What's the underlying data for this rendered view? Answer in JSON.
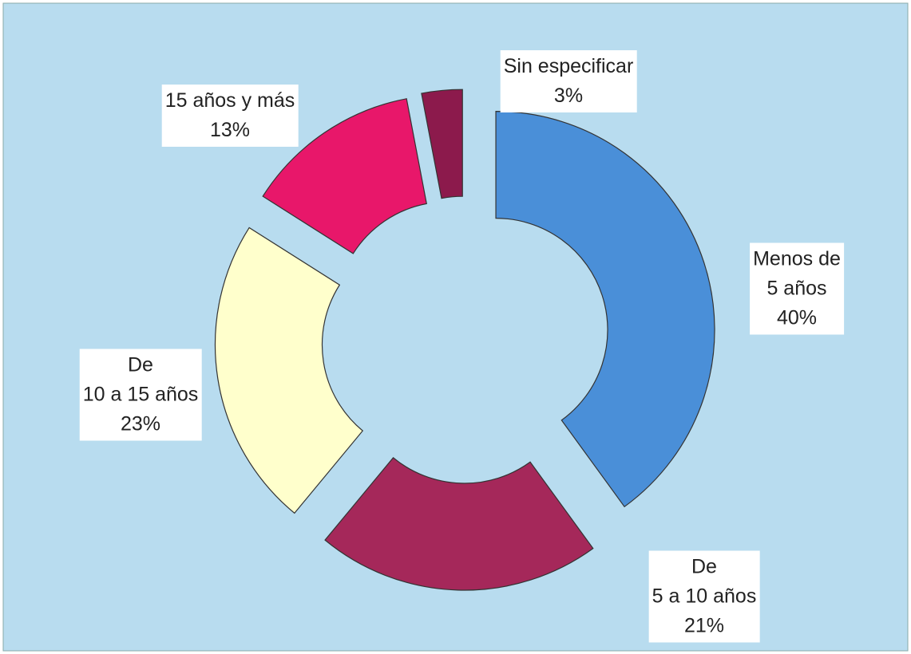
{
  "chart_data": {
    "type": "donut",
    "categories": [
      "Menos de\n5 años",
      "De\n5 a 10 años",
      "De\n10 a 15 años",
      "15 años y más",
      "Sin especificar"
    ],
    "values": [
      40,
      21,
      23,
      13,
      3
    ],
    "value_labels": [
      "40%",
      "21%",
      "23%",
      "13%",
      "3%"
    ],
    "colors": [
      "#4a8fd8",
      "#a5285a",
      "#ffffcc",
      "#e8176a",
      "#8c1a4c"
    ]
  }
}
